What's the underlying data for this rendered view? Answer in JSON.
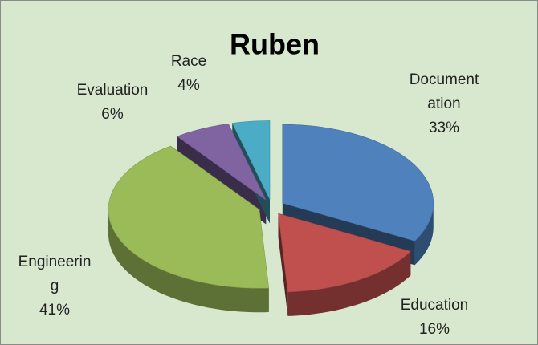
{
  "chart_data": {
    "type": "pie3d",
    "title": "Ruben",
    "categories": [
      "Documentation",
      "Education",
      "Engineering",
      "Evaluation",
      "Race"
    ],
    "values": [
      33,
      16,
      41,
      6,
      4
    ],
    "value_labels": [
      "33%",
      "16%",
      "41%",
      "6%",
      "4%"
    ],
    "colors": [
      "#4f81bd",
      "#c0504d",
      "#9bbb59",
      "#8064a2",
      "#4bacc6"
    ]
  }
}
